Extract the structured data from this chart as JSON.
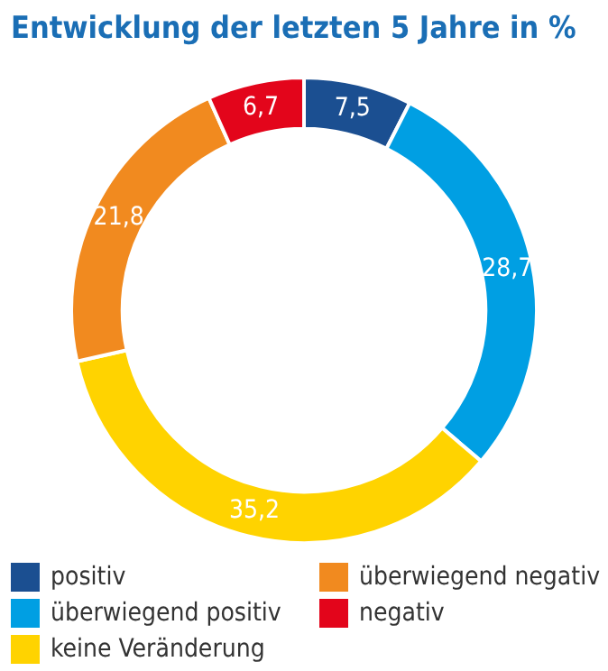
{
  "chart_data": {
    "type": "donut",
    "title": "Entwicklung der letzten 5 Jahre in %",
    "categories": [
      "positiv",
      "überwiegend positiv",
      "keine Veränderung",
      "überwiegend negativ",
      "negativ"
    ],
    "values": [
      7.5,
      28.7,
      35.2,
      21.8,
      6.7
    ],
    "colors": [
      "#1b4f91",
      "#009fe3",
      "#ffd300",
      "#f18a1f",
      "#e3051b"
    ],
    "value_labels": [
      "7,5",
      "28,7",
      "35,2",
      "21,8",
      "6,7"
    ],
    "legend": "bottom"
  }
}
